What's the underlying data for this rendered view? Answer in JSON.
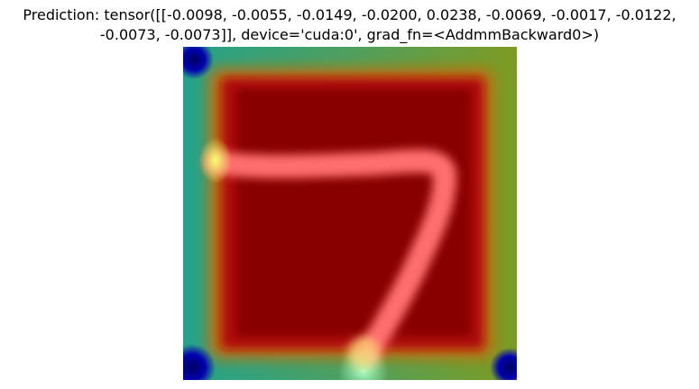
{
  "title": {
    "line1": "Prediction: tensor([[-0.0098, -0.0055, -0.0149, -0.0200,  0.0238, -0.0069, -0.0017, -0.0122,",
    "line2": "-0.0073, -0.0073]], device='cuda:0', grad_fn=<AddmmBackward0>)"
  },
  "image": {
    "description_colors": {
      "outer_border": "#2e9c83",
      "inner_field": "#8a0000",
      "stroke": "#ff6b6b",
      "corner_dark": "#00008a"
    }
  }
}
